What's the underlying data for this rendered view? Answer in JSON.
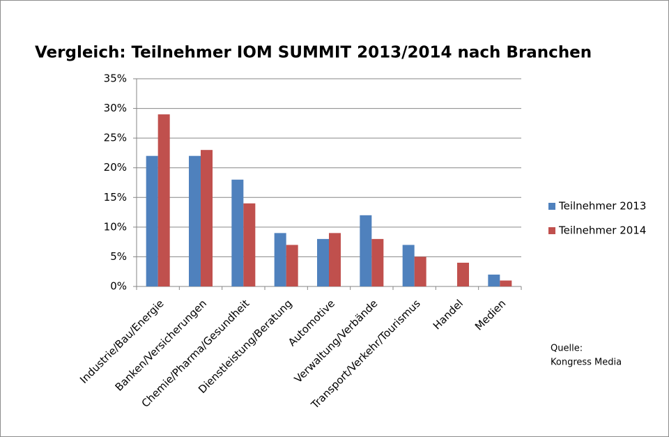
{
  "chart_data": {
    "type": "bar",
    "title": "Vergleich: Teilnehmer IOM SUMMIT 2013/2014 nach Branchen",
    "categories": [
      "Industrie/Bau/Energie",
      "Banken/Versicherungen",
      "Chemie/Pharma/Gesundheit",
      "Dienstleistung/Beratung",
      "Automotive",
      "Verwaltung/Verbände",
      "Transport/Verkehr/Tourismus",
      "Handel",
      "Medien"
    ],
    "series": [
      {
        "name": "Teilnehmer 2013",
        "color": "#4f81bd",
        "values": [
          22,
          22,
          18,
          9,
          8,
          12,
          7,
          0,
          2
        ]
      },
      {
        "name": "Teilnehmer 2014",
        "color": "#c0504d",
        "values": [
          29,
          23,
          14,
          7,
          9,
          8,
          5,
          4,
          1
        ]
      }
    ],
    "ylim": [
      0,
      35
    ],
    "yticks": [
      {
        "value": 0,
        "label": "0%"
      },
      {
        "value": 5,
        "label": "5%"
      },
      {
        "value": 10,
        "label": "10%"
      },
      {
        "value": 15,
        "label": "15%"
      },
      {
        "value": 20,
        "label": "20%"
      },
      {
        "value": 25,
        "label": "25%"
      },
      {
        "value": 30,
        "label": "30%"
      },
      {
        "value": 35,
        "label": "35%"
      }
    ],
    "grid": true,
    "legend": "right",
    "source": [
      "Quelle:",
      "Kongress Media"
    ]
  }
}
